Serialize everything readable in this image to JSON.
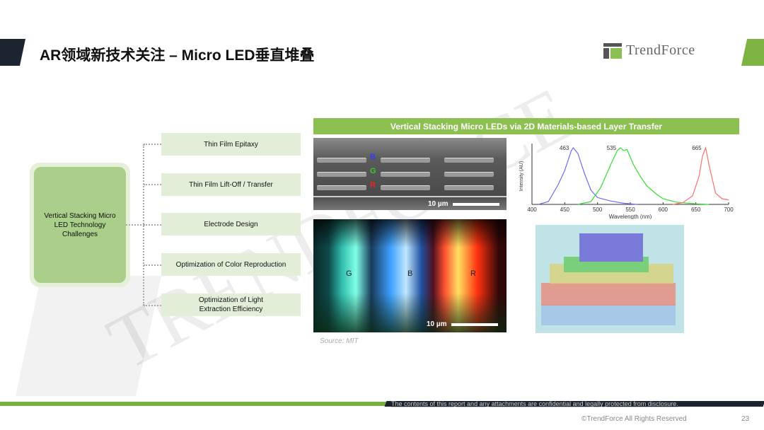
{
  "header": {
    "title": "AR领域新技术关注 – Micro LED垂直堆叠",
    "logo_text": "TrendForce",
    "watermark": "TRENDFORCE"
  },
  "colors": {
    "accent_green": "#8cc152",
    "dark": "#1c2430"
  },
  "diagram": {
    "root": "Vertical Stacking Micro LED Technology Challenges",
    "items": [
      {
        "label": "Thin Film Epitaxy"
      },
      {
        "label": "Thin Film Lift-Off / Transfer"
      },
      {
        "label": "Electrode Design"
      },
      {
        "label": "Optimization of Color Reproduction"
      },
      {
        "label": "Optimization of Light Extraction Efficiency"
      }
    ]
  },
  "figure": {
    "header": "Vertical Stacking Micro LEDs via 2D Materials-based Layer Transfer",
    "sem": {
      "labels": [
        "B",
        "G",
        "R"
      ],
      "scale": "10 µm"
    },
    "photo": {
      "labels": [
        "G",
        "B",
        "R"
      ],
      "scale": "10 µm"
    },
    "source": "Source: MIT"
  },
  "chart_data": {
    "type": "line",
    "xlabel": "Wavelength (nm)",
    "ylabel": "Intensity (AU)",
    "xlim": [
      400,
      700
    ],
    "xticks": [
      400,
      450,
      500,
      550,
      600,
      650,
      700
    ],
    "series": [
      {
        "peak_label": "463",
        "color": "#6a6aff",
        "x": [
          410,
          425,
          440,
          450,
          460,
          463,
          470,
          480,
          490,
          500,
          520,
          540,
          560
        ],
        "y": [
          0,
          0.05,
          0.35,
          0.6,
          0.95,
          1,
          0.9,
          0.55,
          0.25,
          0.12,
          0.06,
          0.02,
          0
        ]
      },
      {
        "peak_label": "535",
        "color": "#33dd33",
        "x": [
          470,
          490,
          505,
          520,
          530,
          535,
          540,
          545,
          555,
          565,
          575,
          590,
          600,
          620,
          650,
          670
        ],
        "y": [
          0,
          0.05,
          0.3,
          0.7,
          0.95,
          1,
          0.95,
          0.97,
          0.7,
          0.5,
          0.33,
          0.18,
          0.1,
          0.04,
          0.01,
          0
        ]
      },
      {
        "peak_label": "665",
        "color": "#ff7070",
        "x": [
          615,
          630,
          645,
          655,
          660,
          665,
          670,
          680,
          690,
          700
        ],
        "y": [
          0,
          0.03,
          0.15,
          0.5,
          0.85,
          1,
          0.7,
          0.2,
          0.1,
          0.08
        ]
      }
    ]
  },
  "footer": {
    "disclaimer": "The contents of this report and any attachments are confidential and legally protected from disclosure.",
    "copyright": "©TrendForce All Rights Reserved",
    "page": "23"
  }
}
